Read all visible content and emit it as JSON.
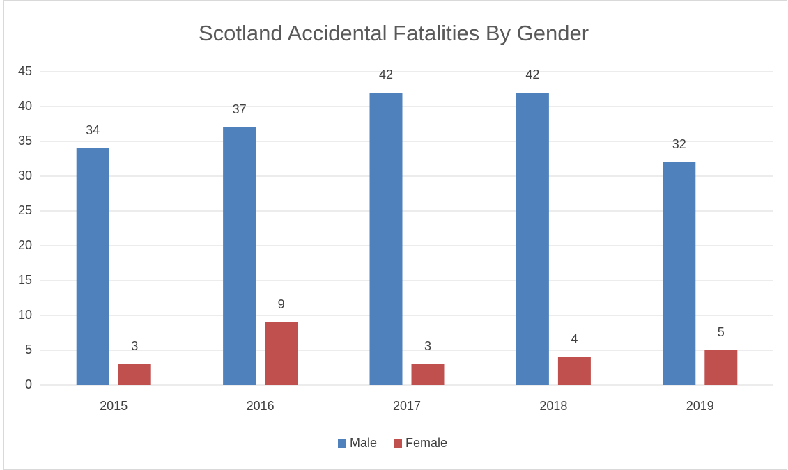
{
  "chart_data": {
    "type": "bar",
    "title": "Scotland Accidental Fatalities By Gender",
    "categories": [
      "2015",
      "2016",
      "2017",
      "2018",
      "2019"
    ],
    "series": [
      {
        "name": "Male",
        "color": "#4f81bd",
        "values": [
          34,
          37,
          42,
          42,
          32
        ]
      },
      {
        "name": "Female",
        "color": "#c0504d",
        "values": [
          3,
          9,
          3,
          4,
          5
        ]
      }
    ],
    "ylim": [
      0,
      45
    ],
    "yticks": [
      0,
      5,
      10,
      15,
      20,
      25,
      30,
      35,
      40,
      45
    ],
    "grid": true,
    "legend": "bottom"
  }
}
